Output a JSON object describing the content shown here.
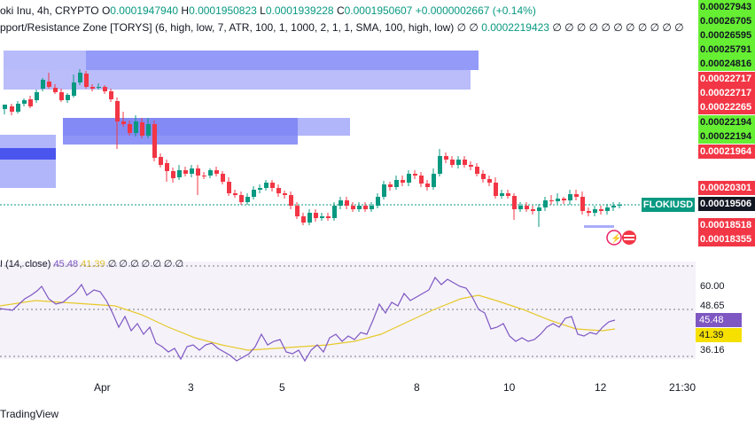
{
  "header": {
    "symbol_line": "oki Inu, 4h, CRYPTO",
    "open_label": "O",
    "open": "0.0001947940",
    "high_label": "H",
    "high": "0.0001950823",
    "low_label": "L",
    "low": "0.0001939228",
    "close_label": "C",
    "close": "0.0001950607",
    "change": "+0.0000002667 (+0.14%)"
  },
  "indicator": {
    "label": "pport/Resistance Zone [TORYS] (6, high, low, 7, ATR, 100, 1, 1000, 2, 1, 1, SMA, 100, high, low)",
    "nulls": "∅ ∅",
    "value": "0.00022194​23",
    "trailing_nulls": "∅ ∅ ∅ ∅ ∅ ∅ ∅ ∅ ∅ ∅ ∅"
  },
  "price_tags": [
    {
      "text": "0.00027943",
      "style": "g"
    },
    {
      "text": "0.00026705",
      "style": "g"
    },
    {
      "text": "0.00026595",
      "style": "g"
    },
    {
      "text": "0.00025791",
      "style": "g"
    },
    {
      "text": "0.00024816",
      "style": "g"
    },
    {
      "text": "0.00022717",
      "style": "r"
    },
    {
      "text": "0.00022717",
      "style": "r"
    },
    {
      "text": "0.00022265",
      "style": "r"
    },
    {
      "text": "0.00022194",
      "style": "g"
    },
    {
      "text": "0.00022194",
      "style": "g"
    },
    {
      "text": "0.00021964",
      "style": "r"
    },
    {
      "text": "0.00020301",
      "style": "r"
    },
    {
      "text": "0.00019506",
      "style": "dk"
    },
    {
      "text": "0.00018518",
      "style": "r"
    },
    {
      "text": "0.00018355",
      "style": "r"
    }
  ],
  "symbol_tag": "FLOKIUSD",
  "rsi": {
    "label": "I (14, close)",
    "value1": "45.48",
    "value2": "41.39",
    "nulls": "∅ ∅ ∅ ∅ ∅ ∅ ∅",
    "axis": [
      "60.00",
      "48.65",
      "36.16"
    ],
    "tag_purple": "45.48",
    "tag_yellow": "41.39"
  },
  "x_axis": [
    "Apr",
    "3",
    "5",
    "8",
    "10",
    "12",
    "21:30"
  ],
  "footer": {
    "brand": "TradingView"
  },
  "colors": {
    "up": "#089981",
    "down": "#f23645",
    "zone": "#7b83f5",
    "rsi": "#7e57c2",
    "ma": "#e6c929"
  }
}
